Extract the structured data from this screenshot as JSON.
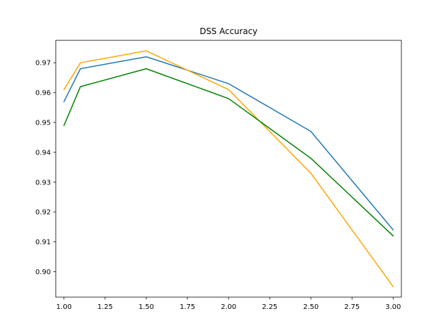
{
  "chart_data": {
    "type": "line",
    "title": "DSS Accuracy",
    "xlabel": "",
    "ylabel": "",
    "x": [
      1.0,
      1.1,
      1.5,
      2.0,
      2.5,
      3.0
    ],
    "xlim": [
      0.95,
      3.05
    ],
    "ylim": [
      0.8915,
      0.9775
    ],
    "xticks": [
      1.0,
      1.25,
      1.5,
      1.75,
      2.0,
      2.25,
      2.5,
      2.75,
      3.0
    ],
    "xtick_labels": [
      "1.00",
      "1.25",
      "1.50",
      "1.75",
      "2.00",
      "2.25",
      "2.50",
      "2.75",
      "3.00"
    ],
    "yticks": [
      0.9,
      0.91,
      0.92,
      0.93,
      0.94,
      0.95,
      0.96,
      0.97
    ],
    "ytick_labels": [
      "0.90",
      "0.91",
      "0.92",
      "0.93",
      "0.94",
      "0.95",
      "0.96",
      "0.97"
    ],
    "grid": false,
    "legend": "none",
    "series": [
      {
        "color": "#1f77b4",
        "values": [
          0.957,
          0.968,
          0.972,
          0.963,
          0.947,
          0.914
        ]
      },
      {
        "color": "#ffa500",
        "values": [
          0.961,
          0.97,
          0.974,
          0.961,
          0.933,
          0.895
        ]
      },
      {
        "color": "#008000",
        "values": [
          0.949,
          0.962,
          0.968,
          0.958,
          0.938,
          0.912
        ]
      }
    ]
  }
}
